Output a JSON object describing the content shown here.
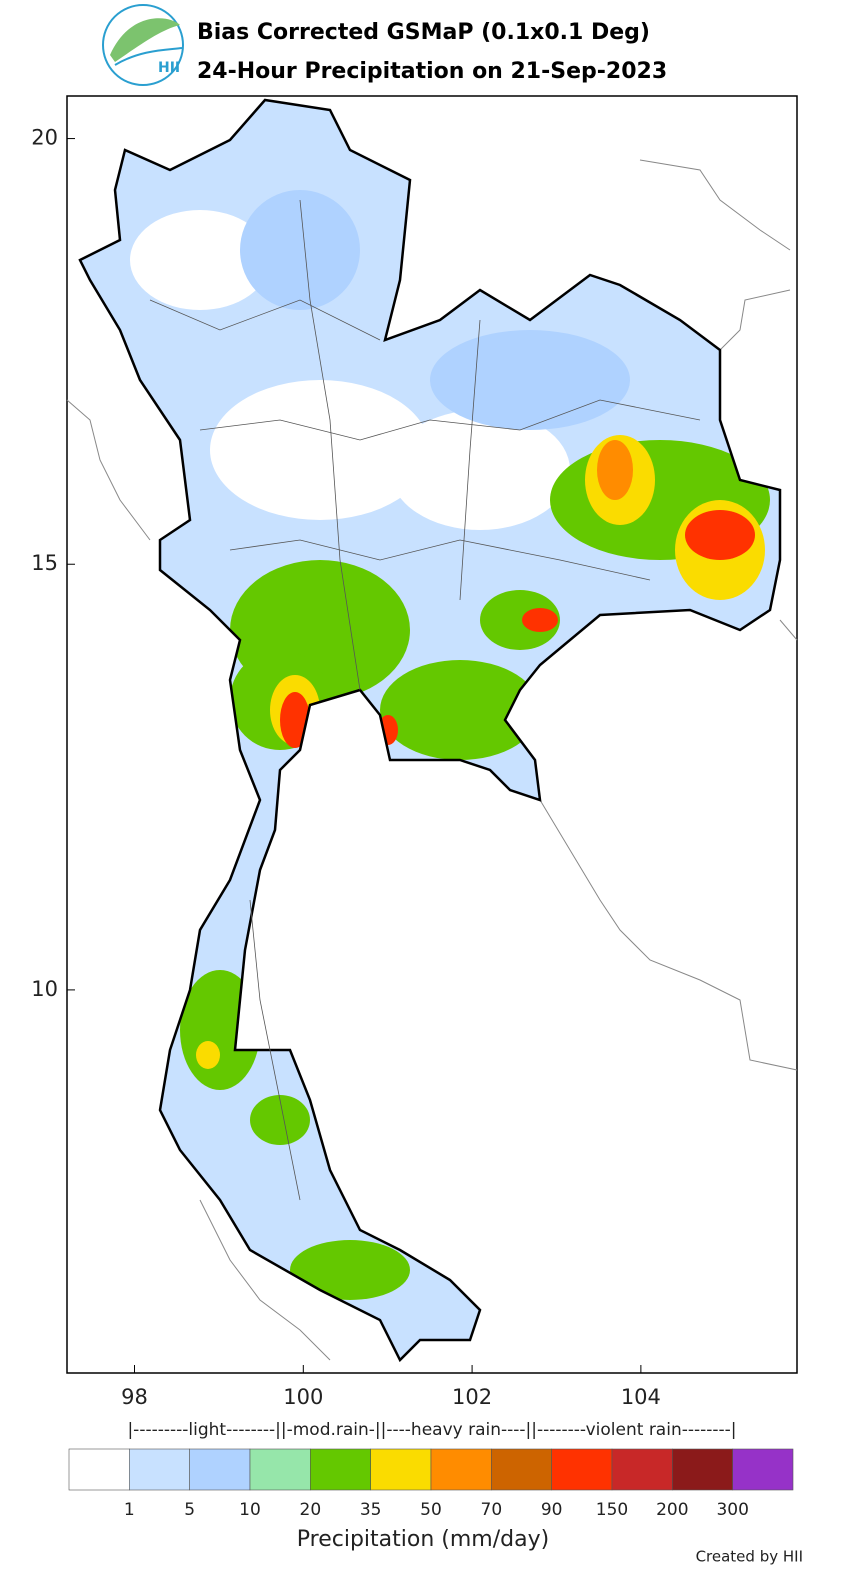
{
  "logo": {
    "text": "HII"
  },
  "chart_data": {
    "type": "map",
    "title": [
      "Bias Corrected GSMaP (0.1x0.1 Deg)",
      "24-Hour Precipitation on 21-Sep-2023"
    ],
    "xlim": [
      97.2,
      105.85
    ],
    "ylim": [
      5.5,
      20.5
    ],
    "xticks": [
      98,
      100,
      102,
      104
    ],
    "yticks": [
      10,
      15,
      20
    ],
    "legend": {
      "category_label": "|---------light--------||-mod.rain-||----heavy rain----||--------violent rain--------|",
      "colors": [
        "#ffffff",
        "#c8e1ff",
        "#afd2ff",
        "#96e6aa",
        "#64c800",
        "#fadc00",
        "#ff8c00",
        "#cd6400",
        "#ff3200",
        "#c82828",
        "#8b1a1a",
        "#9632c8"
      ],
      "bounds": [
        1,
        5,
        10,
        20,
        35,
        50,
        70,
        90,
        150,
        200,
        300
      ],
      "label": "Precipitation (mm/day)"
    }
  },
  "footer": {
    "credit": "Created by HII"
  }
}
